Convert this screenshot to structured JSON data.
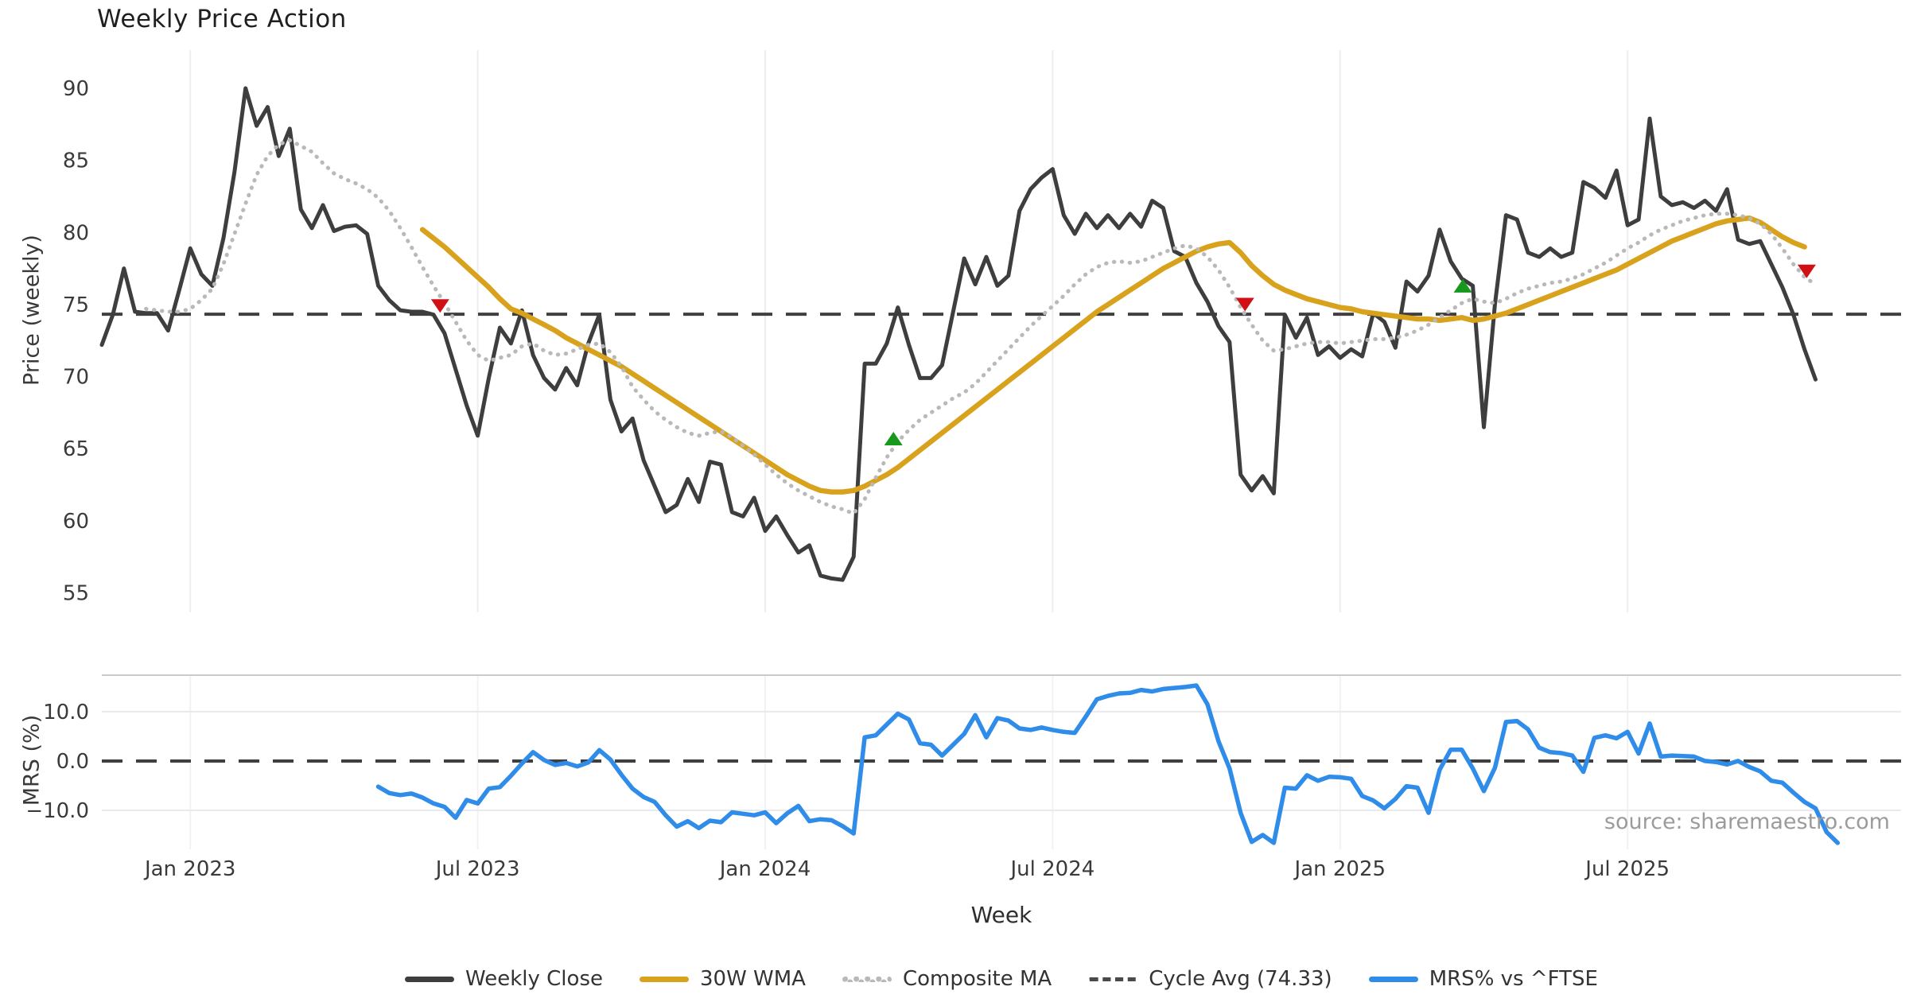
{
  "chart_data": {
    "type": "line",
    "title": "Weekly Price Action",
    "xlabel": "Week",
    "source": "source: sharemaestro.com",
    "x_ticks": [
      {
        "week": 8,
        "label": "Jan 2023"
      },
      {
        "week": 34,
        "label": "Jul 2023"
      },
      {
        "week": 60,
        "label": "Jan 2024"
      },
      {
        "week": 86,
        "label": "Jul 2024"
      },
      {
        "week": 112,
        "label": "Jan 2025"
      },
      {
        "week": 138,
        "label": "Jul 2025"
      }
    ],
    "panels": {
      "price": {
        "ylabel": "Price (weekly)",
        "ylim": [
          53.65,
          92.65
        ],
        "yticks": [
          {
            "v": 90,
            "label": "90"
          },
          {
            "v": 85,
            "label": "85"
          },
          {
            "v": 80,
            "label": "80"
          },
          {
            "v": 75,
            "label": "75"
          },
          {
            "v": 70,
            "label": "70"
          },
          {
            "v": 65,
            "label": "65"
          },
          {
            "v": 60,
            "label": "60"
          },
          {
            "v": 55,
            "label": "55"
          }
        ],
        "ref_line": {
          "name": "Cycle Avg",
          "value": 74.33,
          "color": "#3f3f3f"
        }
      },
      "mrs": {
        "ylabel": "MRS (%)",
        "ylim": [
          -17.9,
          17.4
        ],
        "yticks": [
          {
            "v": 10,
            "label": "10.0"
          },
          {
            "v": 0,
            "label": "0.0"
          },
          {
            "v": -10,
            "label": "−10.0"
          }
        ],
        "grid_values": [
          10,
          -10
        ],
        "ref_line": {
          "name": "Zero",
          "value": 0,
          "color": "#3f3f3f"
        }
      }
    },
    "series": [
      {
        "name": "Weekly Close",
        "panel": "price",
        "style": "solid",
        "color": "#3e3e3e",
        "width": 5,
        "start_week": 0,
        "values": [
          72.2,
          74.3,
          77.5,
          74.5,
          74.4,
          74.4,
          73.2,
          76.0,
          78.9,
          77.1,
          76.3,
          79.6,
          84.2,
          90.0,
          87.4,
          88.7,
          85.3,
          87.2,
          81.6,
          80.3,
          81.9,
          80.1,
          80.4,
          80.5,
          79.9,
          76.3,
          75.3,
          74.6,
          74.5,
          74.5,
          74.3,
          73.0,
          70.5,
          68.0,
          65.9,
          69.9,
          73.4,
          72.3,
          74.6,
          71.5,
          69.9,
          69.1,
          70.6,
          69.4,
          72.3,
          74.3,
          68.4,
          66.2,
          67.1,
          64.2,
          62.4,
          60.6,
          61.1,
          62.9,
          61.3,
          64.1,
          63.9,
          60.6,
          60.3,
          61.6,
          59.3,
          60.3,
          59.0,
          57.8,
          58.3,
          56.2,
          56.0,
          55.9,
          57.5,
          70.9,
          70.9,
          72.3,
          74.8,
          72.2,
          69.9,
          69.9,
          70.8,
          74.5,
          78.2,
          76.4,
          78.3,
          76.3,
          77.0,
          81.5,
          83.0,
          83.8,
          84.4,
          81.2,
          79.9,
          81.3,
          80.3,
          81.2,
          80.3,
          81.3,
          80.4,
          82.2,
          81.7,
          78.7,
          78.3,
          76.5,
          75.2,
          73.5,
          72.4,
          63.2,
          62.1,
          63.1,
          61.9,
          74.3,
          72.7,
          74.1,
          71.5,
          72.1,
          71.3,
          71.9,
          71.4,
          74.4,
          73.8,
          72.0,
          76.6,
          75.9,
          77.0,
          80.2,
          78.0,
          76.8,
          76.3,
          66.5,
          75.0,
          81.2,
          80.9,
          78.6,
          78.3,
          78.9,
          78.3,
          78.6,
          83.5,
          83.1,
          82.4,
          84.3,
          80.5,
          80.9,
          87.9,
          82.5,
          81.9,
          82.1,
          81.7,
          82.2,
          81.5,
          83.0,
          79.5,
          79.2,
          79.4,
          77.8,
          76.2,
          74.3,
          71.9,
          69.8
        ]
      },
      {
        "name": "30W WMA",
        "panel": "price",
        "style": "solid",
        "color": "#d9a21d",
        "width": 6.5,
        "start_week": 29,
        "values": [
          80.2,
          79.6,
          79.0,
          78.3,
          77.6,
          76.9,
          76.2,
          75.4,
          74.7,
          74.4,
          74.0,
          73.6,
          73.2,
          72.7,
          72.3,
          71.9,
          71.5,
          71.1,
          70.7,
          70.2,
          69.7,
          69.2,
          68.7,
          68.2,
          67.7,
          67.2,
          66.7,
          66.2,
          65.7,
          65.2,
          64.7,
          64.2,
          63.7,
          63.2,
          62.8,
          62.4,
          62.1,
          62.0,
          62.0,
          62.1,
          62.4,
          62.8,
          63.2,
          63.7,
          64.3,
          64.9,
          65.5,
          66.1,
          66.7,
          67.3,
          67.9,
          68.5,
          69.1,
          69.7,
          70.3,
          70.9,
          71.5,
          72.1,
          72.7,
          73.3,
          73.9,
          74.5,
          75.0,
          75.5,
          76.0,
          76.5,
          77.0,
          77.5,
          77.9,
          78.3,
          78.7,
          79.0,
          79.2,
          79.3,
          78.6,
          77.7,
          77.0,
          76.4,
          76.0,
          75.7,
          75.4,
          75.2,
          75.0,
          74.8,
          74.7,
          74.5,
          74.4,
          74.3,
          74.2,
          74.1,
          74.0,
          74.0,
          73.9,
          74.0,
          74.1,
          73.9,
          74.0,
          74.2,
          74.4,
          74.7,
          75.0,
          75.3,
          75.6,
          75.9,
          76.2,
          76.5,
          76.8,
          77.1,
          77.4,
          77.8,
          78.2,
          78.6,
          79.0,
          79.4,
          79.7,
          80.0,
          80.3,
          80.6,
          80.8,
          80.9,
          81.0,
          80.7,
          80.2,
          79.7,
          79.3,
          79.0
        ]
      },
      {
        "name": "Composite MA",
        "panel": "price",
        "style": "dotted",
        "color": "#b9b9b9",
        "width": 5,
        "start_week": 4,
        "values": [
          74.7,
          74.6,
          74.5,
          74.5,
          74.7,
          75.3,
          76.1,
          77.8,
          79.9,
          82.0,
          84.0,
          85.3,
          86.1,
          86.4,
          86.0,
          85.6,
          84.8,
          84.1,
          83.7,
          83.4,
          83.0,
          82.4,
          81.5,
          80.3,
          79.0,
          77.6,
          76.3,
          75.1,
          73.8,
          72.5,
          71.5,
          71.1,
          71.3,
          71.5,
          72.1,
          72.3,
          71.8,
          71.5,
          71.6,
          71.9,
          72.2,
          72.3,
          71.7,
          70.7,
          69.3,
          68.4,
          67.6,
          67.0,
          66.5,
          66.1,
          65.9,
          66.1,
          66.2,
          65.8,
          65.2,
          64.6,
          63.9,
          63.2,
          62.6,
          62.1,
          61.7,
          61.3,
          61.0,
          60.8,
          60.5,
          61.5,
          63.0,
          64.4,
          65.5,
          66.3,
          67.0,
          67.5,
          68.0,
          68.5,
          68.9,
          69.5,
          70.3,
          71.1,
          71.9,
          72.7,
          73.5,
          74.2,
          74.9,
          75.6,
          76.4,
          77.1,
          77.6,
          77.9,
          78.0,
          77.9,
          78.0,
          78.3,
          78.6,
          78.9,
          79.1,
          78.9,
          78.3,
          77.4,
          76.2,
          74.8,
          73.6,
          72.5,
          71.8,
          71.9,
          72.1,
          72.3,
          72.4,
          72.4,
          72.3,
          72.4,
          72.5,
          72.6,
          72.6,
          72.7,
          72.9,
          73.2,
          73.6,
          74.1,
          74.6,
          75.1,
          75.4,
          75.2,
          75.1,
          75.4,
          75.8,
          76.1,
          76.3,
          76.5,
          76.6,
          76.8,
          77.1,
          77.5,
          77.9,
          78.4,
          78.9,
          79.3,
          79.8,
          80.2,
          80.5,
          80.8,
          81.0,
          81.2,
          81.3,
          81.3,
          81.2,
          81.0,
          80.6,
          79.9,
          78.9,
          77.8,
          76.9,
          76.4
        ]
      },
      {
        "name": "MRS% vs ^FTSE",
        "panel": "mrs",
        "style": "solid",
        "color": "#2f8ce8",
        "width": 5.5,
        "start_week": 25,
        "values": [
          -5.2,
          -6.5,
          -6.9,
          -6.6,
          -7.4,
          -8.6,
          -9.3,
          -11.5,
          -7.9,
          -8.6,
          -5.6,
          -5.3,
          -3.0,
          -0.5,
          1.8,
          0.2,
          -0.8,
          -0.4,
          -1.1,
          -0.3,
          2.2,
          0.3,
          -2.8,
          -5.6,
          -7.3,
          -8.3,
          -11.0,
          -13.3,
          -12.2,
          -13.6,
          -12.1,
          -12.4,
          -10.4,
          -10.7,
          -11.0,
          -10.4,
          -12.6,
          -10.6,
          -9.1,
          -12.2,
          -11.8,
          -12.0,
          -13.2,
          -14.7,
          4.8,
          5.2,
          7.4,
          9.6,
          8.4,
          3.6,
          3.3,
          1.1,
          3.3,
          5.5,
          9.3,
          4.8,
          8.7,
          8.2,
          6.6,
          6.3,
          6.8,
          6.3,
          5.9,
          5.7,
          9.0,
          12.5,
          13.2,
          13.7,
          13.8,
          14.4,
          14.1,
          14.6,
          14.8,
          15.0,
          15.3,
          11.5,
          4.0,
          -1.5,
          -10.5,
          -16.4,
          -15.0,
          -16.6,
          -5.4,
          -5.6,
          -2.9,
          -4.0,
          -3.2,
          -3.3,
          -3.6,
          -7.1,
          -8.0,
          -9.6,
          -7.7,
          -5.1,
          -5.4,
          -10.5,
          -1.8,
          2.3,
          2.3,
          -1.5,
          -6.1,
          -1.4,
          7.9,
          8.1,
          6.4,
          2.7,
          1.8,
          1.6,
          1.1,
          -2.2,
          4.7,
          5.2,
          4.6,
          5.9,
          1.5,
          7.6,
          0.9,
          1.1,
          1.0,
          0.9,
          0.0,
          -0.2,
          -0.7,
          0.0,
          -1.2,
          -2.1,
          -4.0,
          -4.4,
          -6.4,
          -8.3,
          -9.6,
          -14.4,
          -16.6
        ]
      }
    ],
    "signals": {
      "sell": {
        "color": "#d11016",
        "shape": "triangle-down",
        "points": [
          {
            "week": 30.6,
            "value": 74.9
          },
          {
            "week": 103.4,
            "value": 75.0
          },
          {
            "week": 154.2,
            "value": 77.3
          }
        ]
      },
      "buy": {
        "color": "#17991d",
        "shape": "triangle-up",
        "points": [
          {
            "week": 71.6,
            "value": 65.7
          },
          {
            "week": 123.1,
            "value": 76.3
          }
        ]
      }
    },
    "legend": [
      {
        "label": "Weekly Close",
        "style": "solid",
        "color": "#3e3e3e"
      },
      {
        "label": "30W WMA",
        "style": "solid",
        "color": "#d9a21d"
      },
      {
        "label": "Composite MA",
        "style": "dotted",
        "color": "#b9b9b9"
      },
      {
        "label": "Cycle Avg (74.33)",
        "style": "dashed",
        "color": "#4a4a4a"
      },
      {
        "label": "MRS% vs ^FTSE",
        "style": "solid",
        "color": "#2f8ce8"
      }
    ],
    "grid_color": "#eeeef2",
    "panel_border_color": "#cbcbcb",
    "tick_color": "#3a3a3a"
  }
}
